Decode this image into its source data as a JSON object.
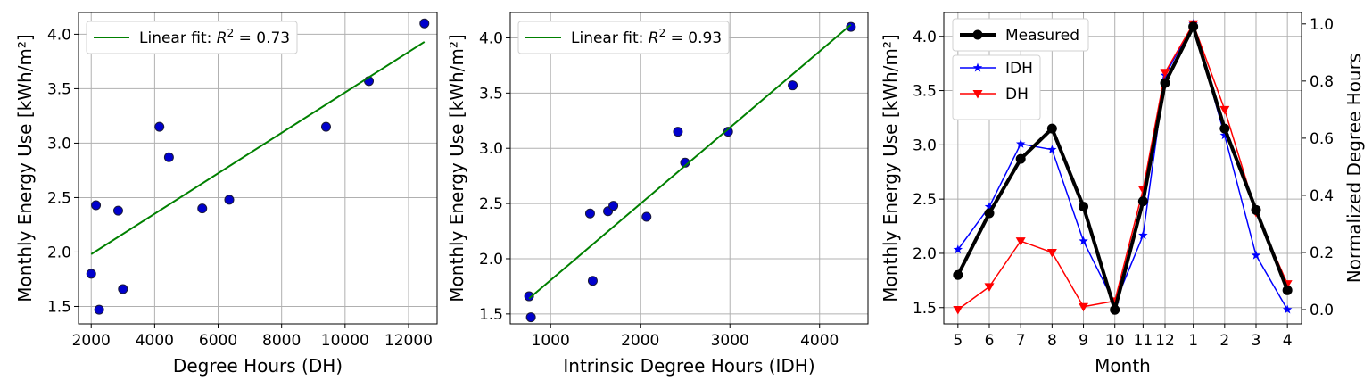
{
  "chart_data": [
    {
      "type": "scatter",
      "xlabel": "Degree Hours (DH)",
      "ylabel": "Monthly Energy Use [kWh/m²]",
      "xlim": [
        1600,
        12900
      ],
      "ylim": [
        1.34,
        4.2
      ],
      "xticks": [
        2000,
        4000,
        6000,
        8000,
        10000,
        12000
      ],
      "xtick_labels": [
        "2000",
        "4000",
        "6000",
        "8000",
        "10000",
        "12000"
      ],
      "yticks": [
        1.5,
        2.0,
        2.5,
        3.0,
        3.5,
        4.0
      ],
      "ytick_labels": [
        "1.5",
        "2.0",
        "2.5",
        "3.0",
        "3.5",
        "4.0"
      ],
      "grid": true,
      "legend": "top-left",
      "series": [
        {
          "name": "points",
          "kind": "scatter",
          "color": "#0000cd",
          "x": [
            2000,
            2150,
            2250,
            2850,
            3000,
            4150,
            4450,
            5500,
            6350,
            9400,
            10750,
            12500
          ],
          "y": [
            1.8,
            2.43,
            1.47,
            2.38,
            1.66,
            3.15,
            2.87,
            2.4,
            2.48,
            3.15,
            3.57,
            4.1
          ]
        },
        {
          "name": "Linear fit: R² = 0.73",
          "legend_main": "Linear fit: ",
          "legend_r": "R",
          "legend_sup": "2",
          "legend_tail": " = 0.73",
          "kind": "line",
          "color": "#008000",
          "x": [
            2000,
            12500
          ],
          "y": [
            1.98,
            3.93
          ]
        }
      ]
    },
    {
      "type": "scatter",
      "xlabel": "Intrinsic Degree Hours (IDH)",
      "ylabel": "Monthly Energy Use [kWh/m²]",
      "xlim": [
        550,
        4540
      ],
      "ylim": [
        1.41,
        4.23
      ],
      "xticks": [
        1000,
        2000,
        3000,
        4000
      ],
      "xtick_labels": [
        "1000",
        "2000",
        "3000",
        "4000"
      ],
      "yticks": [
        1.5,
        2.0,
        2.5,
        3.0,
        3.5,
        4.0
      ],
      "ytick_labels": [
        "1.5",
        "2.0",
        "2.5",
        "3.0",
        "3.5",
        "4.0"
      ],
      "grid": true,
      "legend": "top-left",
      "series": [
        {
          "name": "points",
          "kind": "scatter",
          "color": "#0000cd",
          "x": [
            760,
            780,
            1440,
            1470,
            1640,
            1700,
            2070,
            2420,
            2500,
            2980,
            3700,
            4350
          ],
          "y": [
            1.66,
            1.47,
            2.41,
            1.8,
            2.43,
            2.48,
            2.38,
            3.15,
            2.87,
            3.15,
            3.57,
            4.1
          ]
        },
        {
          "name": "Linear fit: R² = 0.93",
          "legend_main": "Linear fit: ",
          "legend_r": "R",
          "legend_sup": "2",
          "legend_tail": " = 0.93",
          "kind": "line",
          "color": "#008000",
          "x": [
            760,
            4350
          ],
          "y": [
            1.64,
            4.12
          ]
        }
      ]
    },
    {
      "type": "line",
      "xlabel": "Month",
      "ylabel": "Monthly Energy Use [kWh/m²]",
      "y2label": "Normalized Degree Hours",
      "categories": [
        "5",
        "6",
        "7",
        "8",
        "9",
        "10",
        "11",
        "12",
        "1",
        "2",
        "3",
        "4"
      ],
      "x_positions": [
        0,
        1,
        2,
        3,
        4,
        5,
        5.9,
        6.6,
        7.5,
        8.5,
        9.5,
        10.5
      ],
      "xlim": [
        -0.45,
        10.95
      ],
      "ylim": [
        1.35,
        4.22
      ],
      "y2lim": [
        -0.05,
        1.04
      ],
      "yticks": [
        1.5,
        2.0,
        2.5,
        3.0,
        3.5,
        4.0
      ],
      "ytick_labels": [
        "1.5",
        "2.0",
        "2.5",
        "3.0",
        "3.5",
        "4.0"
      ],
      "y2ticks": [
        0.0,
        0.2,
        0.4,
        0.6,
        0.8,
        1.0
      ],
      "y2tick_labels": [
        "0.0",
        "0.2",
        "0.4",
        "0.6",
        "0.8",
        "1.0"
      ],
      "grid": true,
      "legend": "top-left",
      "series": [
        {
          "name": "Measured",
          "axis": "left",
          "color": "#000000",
          "marker": "circle",
          "values": [
            1.8,
            2.37,
            2.87,
            3.15,
            2.43,
            1.48,
            2.48,
            3.57,
            4.09,
            3.15,
            2.4,
            1.66
          ]
        },
        {
          "name": "IDH",
          "axis": "right",
          "color": "#0000ff",
          "marker": "star",
          "values": [
            0.21,
            0.36,
            0.58,
            0.56,
            0.24,
            0.02,
            0.26,
            0.82,
            1.0,
            0.61,
            0.19,
            0.0
          ]
        },
        {
          "name": "DH",
          "axis": "right",
          "color": "#ff0000",
          "marker": "triangle-down",
          "values": [
            0.0,
            0.08,
            0.24,
            0.2,
            0.01,
            0.03,
            0.42,
            0.83,
            1.0,
            0.7,
            0.34,
            0.09
          ]
        }
      ]
    }
  ]
}
